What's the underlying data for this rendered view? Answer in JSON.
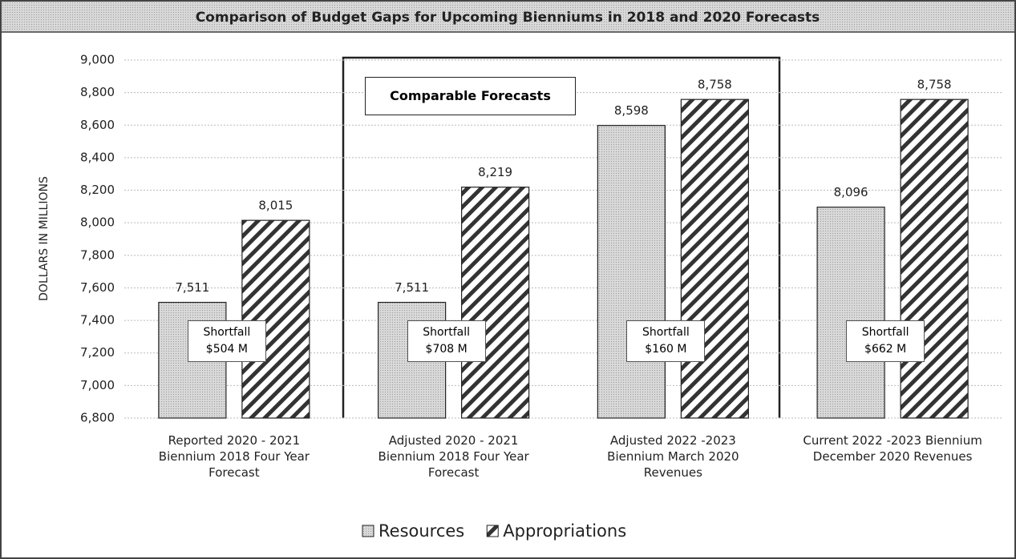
{
  "chart_data": {
    "type": "bar",
    "title": "Comparison of Budget Gaps for Upcoming Bienniums in 2018 and 2020 Forecasts",
    "y_label": "DOLLARS IN MILLIONS",
    "categories": [
      "Reported 2020 - 2021\nBiennium 2018 Four Year\nForecast",
      "Adjusted 2020 - 2021\nBiennium 2018 Four Year\nForecast",
      "Adjusted 2022 -2023\nBiennium March 2020\nRevenues",
      "Current 2022 -2023 Biennium\nDecember 2020  Revenues"
    ],
    "series": [
      {
        "name": "Resources",
        "color": "#a6a6a6",
        "values": [
          7511,
          7511,
          8598,
          8096
        ],
        "value_labels": [
          "7,511",
          "7,511",
          "8,598",
          "8,096"
        ]
      },
      {
        "name": "Appropriations",
        "color": "#333333",
        "values": [
          8015,
          8219,
          8758,
          8758
        ],
        "value_labels": [
          "8,015",
          "8,219",
          "8,758",
          "8,758"
        ]
      }
    ],
    "annotations": [
      "Comparable Forecasts",
      "Shortfall\n$504 M",
      "Shortfall\n$708 M",
      "Shortfall\n$160 M",
      "Shortfall\n$662 M"
    ],
    "ylim": [
      6800,
      9000
    ],
    "yticks": [
      {
        "value": 6800,
        "label": "6,800"
      },
      {
        "value": 7000,
        "label": "7,000"
      },
      {
        "value": 7200,
        "label": "7,200"
      },
      {
        "value": 7400,
        "label": "7,400"
      },
      {
        "value": 7600,
        "label": "7,600"
      },
      {
        "value": 7800,
        "label": "7,800"
      },
      {
        "value": 8000,
        "label": "8,000"
      },
      {
        "value": 8200,
        "label": "8,200"
      },
      {
        "value": 8400,
        "label": "8,400"
      },
      {
        "value": 8600,
        "label": "8,600"
      },
      {
        "value": 8800,
        "label": "8,800"
      },
      {
        "value": 9000,
        "label": "9,000"
      }
    ],
    "grid": true,
    "legend": "bottom"
  }
}
